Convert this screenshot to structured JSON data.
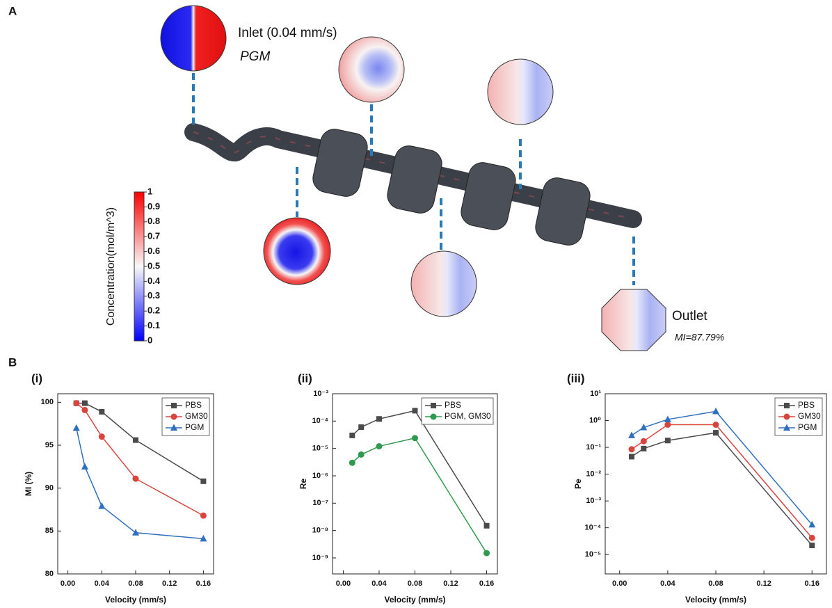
{
  "panel_a": {
    "label": "A",
    "inlet_label": "Inlet (0.04 mm/s)",
    "inlet_material": "PGM",
    "outlet_label": "Outlet",
    "outlet_mi": "MI=87.79%",
    "colorbar": {
      "title": "Concentration(mol/m^3)",
      "range": [
        0,
        1
      ],
      "ticks": [
        0,
        0.1,
        0.2,
        0.3,
        0.4,
        0.5,
        0.6,
        0.7,
        0.8,
        0.9,
        1
      ]
    }
  },
  "panel_b_label": "B",
  "chart_data": [
    {
      "type": "line",
      "title": "(i)",
      "x_label": "Velocity (mm/s)",
      "y_label": "MI (%)",
      "log_y": false,
      "legend": "top-right",
      "x": [
        0.01,
        0.02,
        0.04,
        0.08,
        0.16
      ],
      "xlim": [
        -0.012,
        0.172
      ],
      "xticks": [
        {
          "value": 0,
          "label": "0.00"
        },
        0.04,
        0.08,
        0.12,
        0.16
      ],
      "ylim": [
        80,
        101
      ],
      "yticks": [
        80,
        85,
        90,
        95,
        100
      ],
      "series": [
        {
          "name": "PBS",
          "color": "#4a4a4a",
          "marker": "square",
          "values": [
            99.9,
            99.9,
            98.9,
            95.6,
            90.8
          ]
        },
        {
          "name": "GM30",
          "color": "#d9453d",
          "marker": "circle",
          "values": [
            99.9,
            99.1,
            96.0,
            91.1,
            86.8
          ]
        },
        {
          "name": "PGM",
          "color": "#2f6fbf",
          "marker": "triangle",
          "values": [
            97.0,
            92.5,
            87.9,
            84.8,
            84.1
          ]
        }
      ]
    },
    {
      "type": "line",
      "title": "(ii)",
      "x_label": "Velocity (mm/s)",
      "y_label": "Re",
      "log_y": true,
      "legend": "top-right",
      "x": [
        0.01,
        0.02,
        0.04,
        0.08,
        0.16
      ],
      "xlim": [
        -0.012,
        0.172
      ],
      "xticks": [
        {
          "value": 0,
          "label": "0.00"
        },
        0.04,
        0.08,
        0.12,
        0.16
      ],
      "ylim": [
        2.6e-10,
        0.001
      ],
      "yticks": [
        {
          "value": 0.001,
          "label": "10⁻³"
        },
        {
          "value": 0.0001,
          "label": "10⁻⁴"
        },
        {
          "value": 1e-05,
          "label": "10⁻⁵"
        },
        {
          "value": 1e-06,
          "label": "10⁻⁶"
        },
        {
          "value": 1e-07,
          "label": "10⁻⁷"
        },
        {
          "value": 1e-08,
          "label": "10⁻⁸"
        },
        {
          "value": 1e-09,
          "label": "10⁻⁹"
        }
      ],
      "series": [
        {
          "name": "PBS",
          "color": "#4a4a4a",
          "marker": "square",
          "values": [
            3e-05,
            6e-05,
            0.00012,
            0.00024,
            1.5e-08
          ]
        },
        {
          "name": "PGM, GM30",
          "color": "#2e9a4f",
          "marker": "circle",
          "values": [
            3e-06,
            6e-06,
            1.2e-05,
            2.4e-05,
            1.5e-09
          ]
        }
      ]
    },
    {
      "type": "line",
      "title": "(iii)",
      "x_label": "Velocity (mm/s)",
      "y_label": "Pe",
      "log_y": true,
      "legend": "top-right",
      "x": [
        0.01,
        0.02,
        0.04,
        0.08,
        0.16
      ],
      "xlim": [
        -0.012,
        0.172
      ],
      "xticks": [
        {
          "value": 0,
          "label": "0.00"
        },
        0.04,
        0.08,
        0.12,
        0.16
      ],
      "ylim": [
        1.9e-06,
        10
      ],
      "yticks": [
        {
          "value": 10,
          "label": "10¹"
        },
        {
          "value": 1,
          "label": "10⁰"
        },
        {
          "value": 0.1,
          "label": "10⁻¹"
        },
        {
          "value": 0.01,
          "label": "10⁻²"
        },
        {
          "value": 0.001,
          "label": "10⁻³"
        },
        {
          "value": 0.0001,
          "label": "10⁻⁴"
        },
        {
          "value": 1e-05,
          "label": "10⁻⁵"
        }
      ],
      "series": [
        {
          "name": "PBS",
          "color": "#4a4a4a",
          "marker": "square",
          "values": [
            0.045,
            0.09,
            0.18,
            0.35,
            2.2e-05
          ]
        },
        {
          "name": "GM30",
          "color": "#d9453d",
          "marker": "circle",
          "values": [
            0.085,
            0.17,
            0.7,
            0.7,
            4.2e-05
          ]
        },
        {
          "name": "PGM",
          "color": "#2f6fbf",
          "marker": "triangle",
          "values": [
            0.28,
            0.55,
            1.1,
            2.2,
            0.00013
          ]
        }
      ]
    }
  ]
}
